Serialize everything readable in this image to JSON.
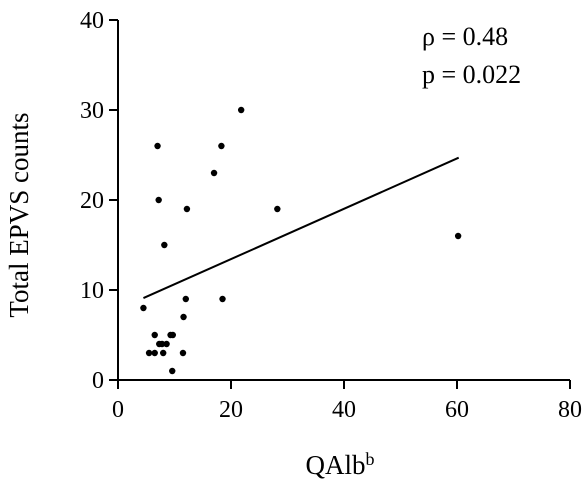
{
  "chart_data": {
    "type": "scatter",
    "title": "",
    "xlabel": "QAlb",
    "xlabel_superscript": "b",
    "ylabel": "Total EPVS counts",
    "xlim": [
      0,
      80
    ],
    "ylim": [
      0,
      40
    ],
    "xticks": [
      0,
      20,
      40,
      60,
      80
    ],
    "yticks": [
      0,
      10,
      20,
      30,
      40
    ],
    "grid": false,
    "legend": "none",
    "annotations": [
      "ρ = 0.48",
      "p = 0.022"
    ],
    "points": [
      {
        "x": 4.5,
        "y": 8
      },
      {
        "x": 5.5,
        "y": 3
      },
      {
        "x": 6.5,
        "y": 3
      },
      {
        "x": 6.5,
        "y": 5
      },
      {
        "x": 7.0,
        "y": 26
      },
      {
        "x": 7.2,
        "y": 20
      },
      {
        "x": 7.3,
        "y": 4
      },
      {
        "x": 7.8,
        "y": 4
      },
      {
        "x": 8.0,
        "y": 3
      },
      {
        "x": 8.2,
        "y": 15
      },
      {
        "x": 8.6,
        "y": 4
      },
      {
        "x": 9.3,
        "y": 5
      },
      {
        "x": 9.7,
        "y": 5
      },
      {
        "x": 9.6,
        "y": 1
      },
      {
        "x": 11.5,
        "y": 3
      },
      {
        "x": 11.6,
        "y": 7
      },
      {
        "x": 12.0,
        "y": 9
      },
      {
        "x": 12.2,
        "y": 19
      },
      {
        "x": 17.0,
        "y": 23
      },
      {
        "x": 18.3,
        "y": 26
      },
      {
        "x": 18.5,
        "y": 9
      },
      {
        "x": 21.8,
        "y": 30
      },
      {
        "x": 28.2,
        "y": 19
      },
      {
        "x": 60.2,
        "y": 16
      }
    ],
    "trendline": {
      "x": [
        4.5,
        60.3
      ],
      "y": [
        9.1,
        24.7
      ]
    },
    "colors": {
      "points": "#000000",
      "line": "#000000",
      "axis": "#000000"
    }
  }
}
